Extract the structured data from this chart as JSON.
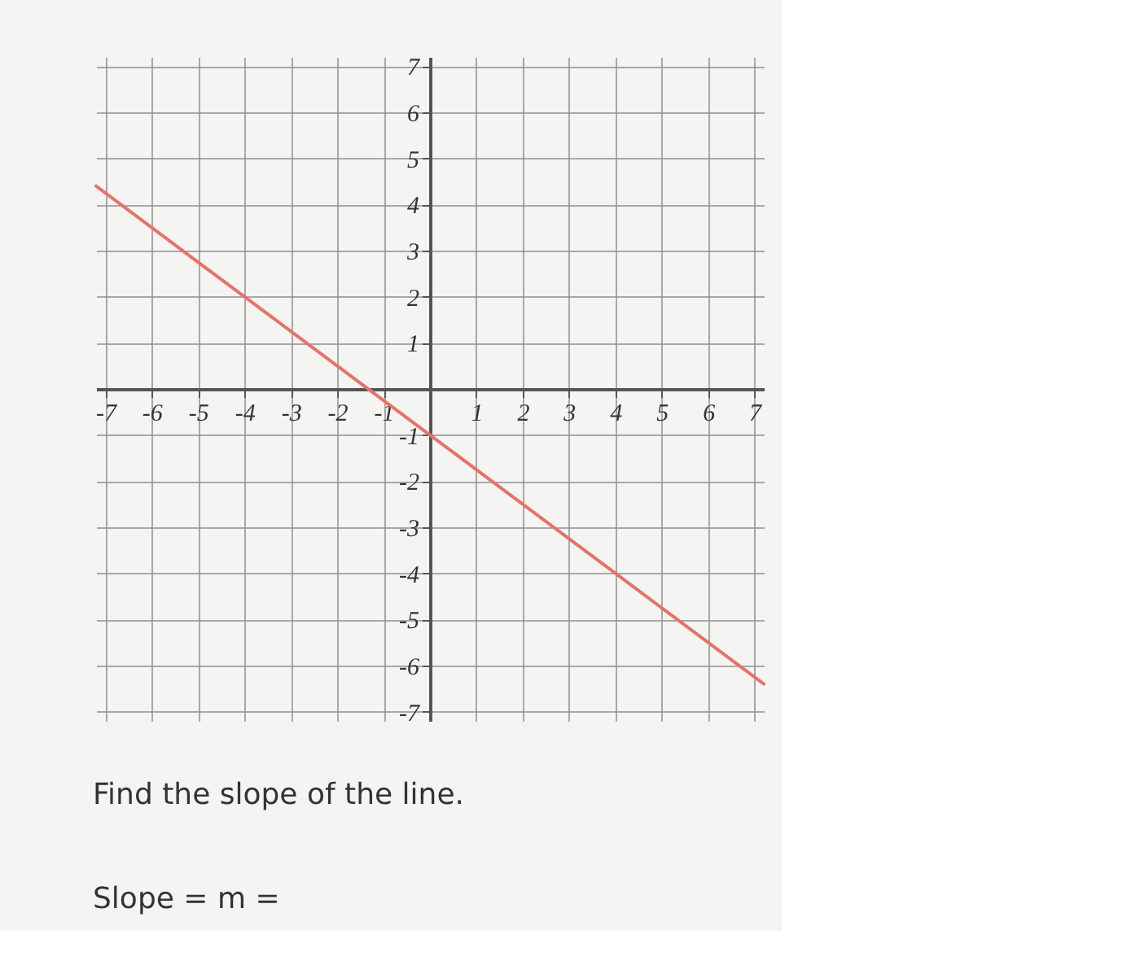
{
  "chart_data": {
    "type": "line",
    "x": [
      -7.2,
      -4,
      0,
      4,
      7.2
    ],
    "series": [
      {
        "color": "#e57368",
        "values": [
          4.4,
          2,
          -1,
          -4,
          -6.4
        ]
      }
    ],
    "xlim": [
      -7.2,
      7.2
    ],
    "ylim": [
      -7.2,
      7.2
    ],
    "xticks": [
      -7,
      -6,
      -5,
      -4,
      -3,
      -2,
      -1,
      {
        "value": 0,
        "label": null
      },
      1,
      2,
      3,
      4,
      5,
      6,
      7
    ],
    "yticks": [
      -7,
      -6,
      -5,
      -4,
      -3,
      -2,
      -1,
      {
        "value": 0,
        "label": null
      },
      1,
      2,
      3,
      4,
      5,
      6,
      7
    ],
    "grid": true,
    "marker": "none",
    "line_style": "solid",
    "annotations": [
      "Find the slope of the line.",
      "Slope = m ="
    ]
  }
}
